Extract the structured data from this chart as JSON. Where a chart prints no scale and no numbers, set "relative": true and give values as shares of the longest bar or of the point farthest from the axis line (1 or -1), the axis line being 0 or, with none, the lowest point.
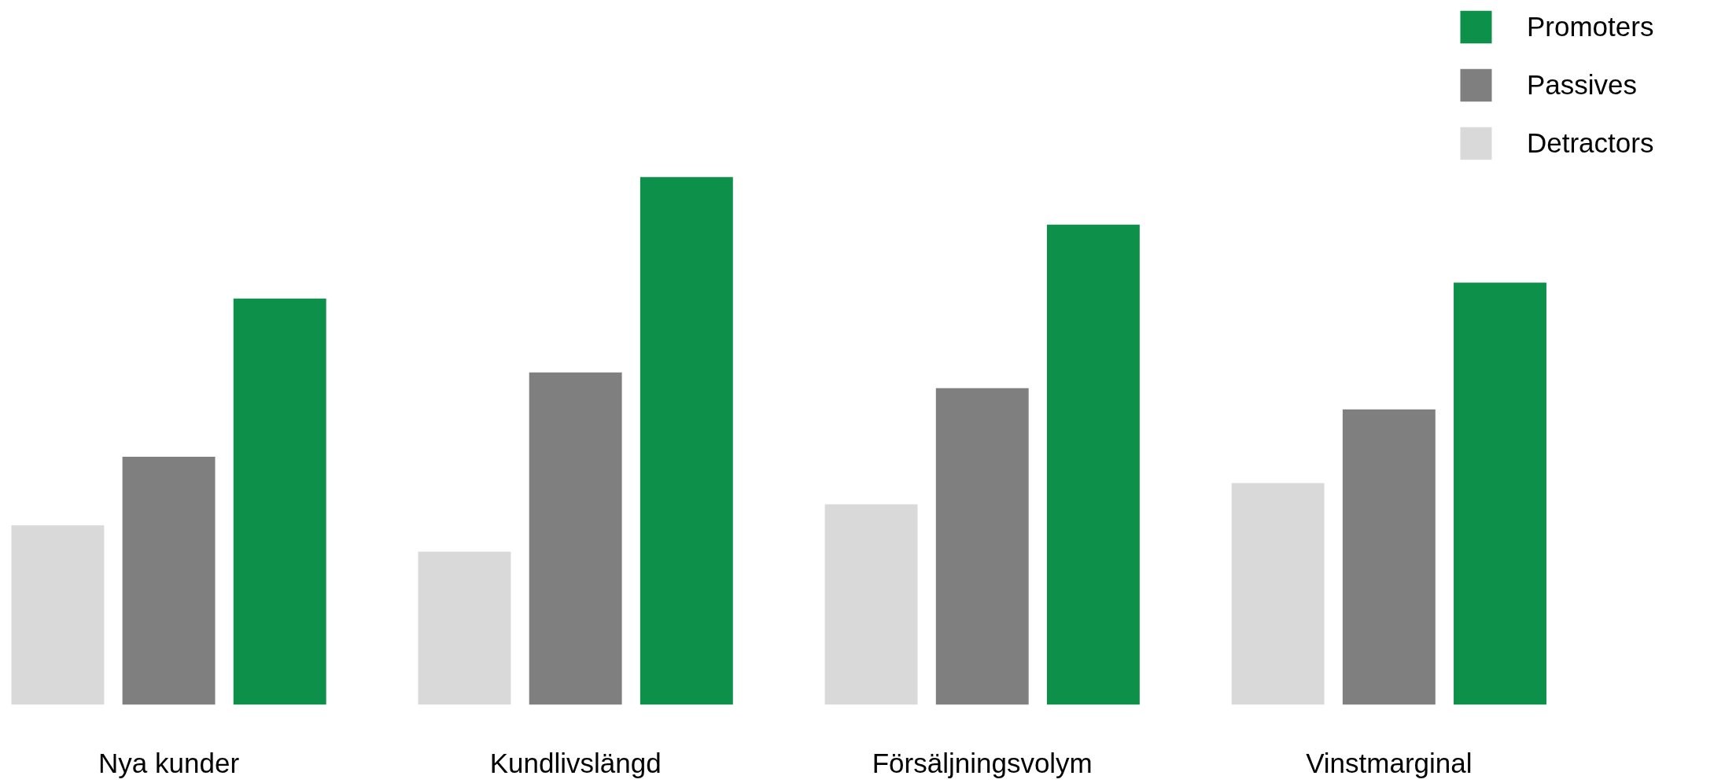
{
  "chart_data": {
    "type": "bar",
    "relative": true,
    "categories": [
      "Nya kunder",
      "Kundlivslängd",
      "Försäljningsvolym",
      "Vinstmarginal"
    ],
    "series": [
      {
        "name": "Detractors",
        "color": "#d9d9d9",
        "values": [
          0.34,
          0.29,
          0.38,
          0.42
        ]
      },
      {
        "name": "Passives",
        "color": "#7f7f7f",
        "values": [
          0.47,
          0.63,
          0.6,
          0.56
        ]
      },
      {
        "name": "Promoters",
        "color": "#0c904a",
        "values": [
          0.77,
          1,
          0.91,
          0.8
        ]
      }
    ],
    "legend": "top right",
    "grid": false
  }
}
